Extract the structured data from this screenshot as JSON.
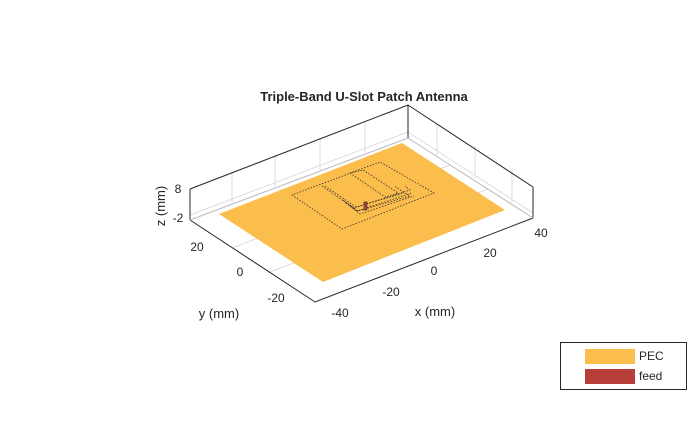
{
  "title": "Triple-Band U-Slot Patch Antenna",
  "axes": {
    "xlabel": "x (mm)",
    "ylabel": "y (mm)",
    "zlabel": "z (mm)",
    "xticks": [
      "-40",
      "-20",
      "0",
      "20",
      "40"
    ],
    "yticks": [
      "20",
      "0",
      "-20"
    ],
    "zticks": [
      "8",
      "-2"
    ]
  },
  "legend": [
    {
      "label": "PEC",
      "color": "#fbbd4b"
    },
    {
      "label": "feed",
      "color": "#b83e3a"
    }
  ],
  "colors": {
    "pec": "#fbbd4b",
    "feed": "#b83e3a",
    "axis": "#262626",
    "grid": "#dcdcdc"
  }
}
